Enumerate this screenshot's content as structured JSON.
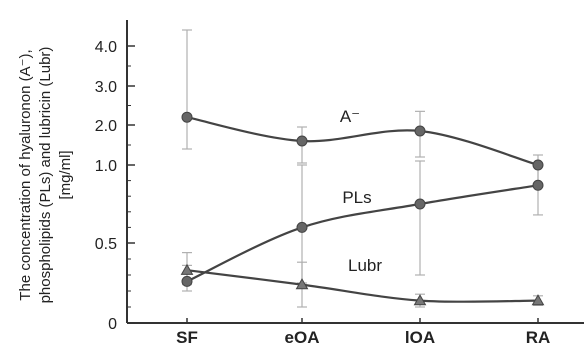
{
  "chart_data": {
    "type": "line",
    "categories": [
      "SF",
      "eOA",
      "lOA",
      "RA"
    ],
    "ylabel_lines": [
      "The concentration of hyaluronon (A⁻),",
      "phospholipids (PLs) and lubricin (Lubr)",
      "[mg/ml]"
    ],
    "yaxis": {
      "scale": "piecewise",
      "segments": [
        {
          "from": 0,
          "to": 0.5
        },
        {
          "from": 0.5,
          "to": 1.0
        },
        {
          "from": 1.0,
          "to": 4.0
        }
      ],
      "ticks": [
        {
          "value": 0,
          "label": "0"
        },
        {
          "value": 0.5,
          "label": "0.5"
        },
        {
          "value": 1.0,
          "label": "1.0"
        },
        {
          "value": 2.0,
          "label": "2.0"
        },
        {
          "value": 3.0,
          "label": "3.0"
        },
        {
          "value": 4.0,
          "label": "4.0"
        }
      ]
    },
    "series": [
      {
        "name": "A⁻",
        "marker": "circle",
        "color": "#555555",
        "values": [
          2.2,
          1.6,
          1.85,
          1.0
        ],
        "err_low": [
          1.4,
          1.05,
          1.2,
          0.88
        ],
        "err_high": [
          4.4,
          1.95,
          2.35,
          1.25
        ]
      },
      {
        "name": "PLs",
        "marker": "circle",
        "color": "#555555",
        "values": [
          0.26,
          0.6,
          0.75,
          0.87
        ],
        "err_low": [
          0.2,
          0.25,
          0.3,
          0.68
        ],
        "err_high": [
          0.36,
          1.0,
          1.1,
          1.05
        ]
      },
      {
        "name": "Lubr",
        "marker": "triangle",
        "color": "#555555",
        "values": [
          0.33,
          0.24,
          0.14,
          0.14
        ],
        "err_low": [
          0.24,
          0.1,
          0.1,
          0.11
        ],
        "err_high": [
          0.44,
          0.38,
          0.18,
          0.17
        ]
      }
    ]
  }
}
